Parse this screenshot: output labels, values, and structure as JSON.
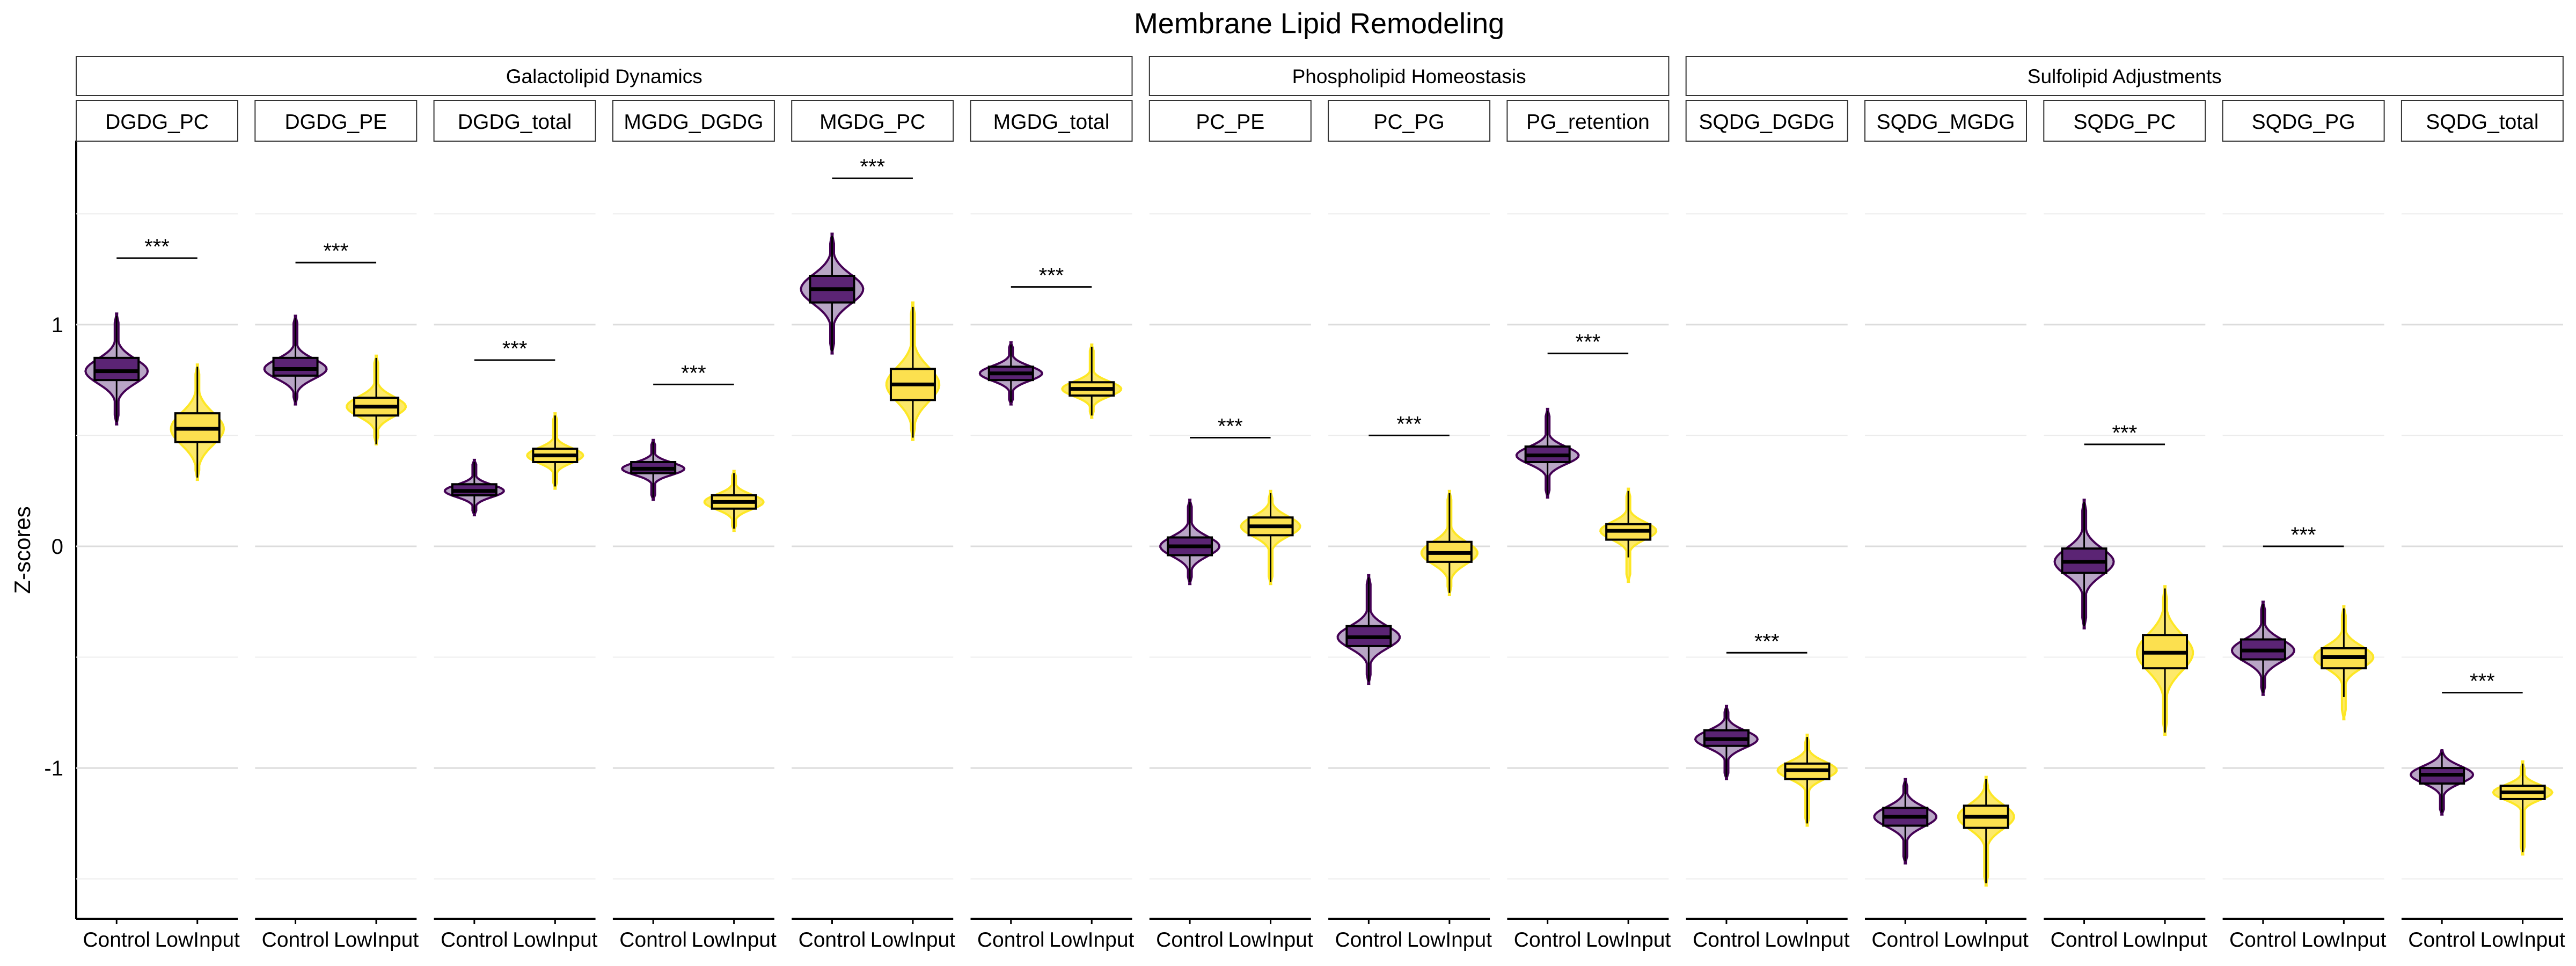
{
  "chart_data": {
    "type": "violin",
    "title": "Membrane Lipid Remodeling",
    "xlabel": "",
    "ylabel": "Z-scores",
    "y_ticks": [
      1,
      0,
      -1
    ],
    "y_tick_labels": [
      "1",
      "0",
      "-1"
    ],
    "ylim": [
      -1.68,
      1.83
    ],
    "grid": true,
    "categories": [
      "Control",
      "LowInput"
    ],
    "colors": {
      "Control": {
        "fill": "#b9a6c6",
        "box": "#5b2474",
        "line": "#440154"
      },
      "LowInput": {
        "fill": "#fde96a",
        "box": "#fce04f",
        "line": "#fde725"
      }
    },
    "significance_label": "***",
    "groups": [
      {
        "name": "Galactolipid Dynamics",
        "panels": [
          0,
          1,
          2,
          3,
          4,
          5
        ]
      },
      {
        "name": "Phospholipid Homeostasis",
        "panels": [
          6,
          7,
          8
        ]
      },
      {
        "name": "Sulfolipid Adjustments",
        "panels": [
          9,
          10,
          11,
          12,
          13
        ]
      }
    ],
    "panels": [
      {
        "name": "DGDG_PC",
        "sig": 1.3,
        "series": [
          {
            "name": "Control",
            "min": 0.56,
            "q1": 0.75,
            "median": 0.79,
            "q3": 0.85,
            "max": 1.04,
            "vmin": 0.55,
            "vmax": 1.05,
            "width": 1.0
          },
          {
            "name": "LowInput",
            "min": 0.31,
            "q1": 0.47,
            "median": 0.53,
            "q3": 0.6,
            "max": 0.81,
            "vmin": 0.3,
            "vmax": 0.82,
            "width": 0.85
          }
        ]
      },
      {
        "name": "DGDG_PE",
        "sig": 1.28,
        "series": [
          {
            "name": "Control",
            "min": 0.65,
            "q1": 0.77,
            "median": 0.8,
            "q3": 0.85,
            "max": 1.03,
            "vmin": 0.64,
            "vmax": 1.04,
            "width": 1.0
          },
          {
            "name": "LowInput",
            "min": 0.46,
            "q1": 0.59,
            "median": 0.63,
            "q3": 0.67,
            "max": 0.85,
            "vmin": 0.46,
            "vmax": 0.86,
            "width": 0.95
          }
        ]
      },
      {
        "name": "DGDG_total",
        "sig": 0.84,
        "series": [
          {
            "name": "Control",
            "min": 0.15,
            "q1": 0.23,
            "median": 0.25,
            "q3": 0.28,
            "max": 0.38,
            "vmin": 0.14,
            "vmax": 0.39,
            "width": 0.95
          },
          {
            "name": "LowInput",
            "min": 0.27,
            "q1": 0.38,
            "median": 0.41,
            "q3": 0.44,
            "max": 0.59,
            "vmin": 0.26,
            "vmax": 0.6,
            "width": 0.9
          }
        ]
      },
      {
        "name": "MGDG_DGDG",
        "sig": 0.73,
        "series": [
          {
            "name": "Control",
            "min": 0.22,
            "q1": 0.33,
            "median": 0.35,
            "q3": 0.38,
            "max": 0.47,
            "vmin": 0.21,
            "vmax": 0.48,
            "width": 1.0
          },
          {
            "name": "LowInput",
            "min": 0.08,
            "q1": 0.17,
            "median": 0.2,
            "q3": 0.23,
            "max": 0.33,
            "vmin": 0.07,
            "vmax": 0.34,
            "width": 0.95
          }
        ]
      },
      {
        "name": "MGDG_PC",
        "sig": 1.66,
        "series": [
          {
            "name": "Control",
            "min": 0.88,
            "q1": 1.1,
            "median": 1.16,
            "q3": 1.22,
            "max": 1.4,
            "vmin": 0.87,
            "vmax": 1.41,
            "width": 1.0
          },
          {
            "name": "LowInput",
            "min": 0.49,
            "q1": 0.66,
            "median": 0.73,
            "q3": 0.8,
            "max": 1.08,
            "vmin": 0.48,
            "vmax": 1.1,
            "width": 0.85
          }
        ]
      },
      {
        "name": "MGDG_total",
        "sig": 1.17,
        "series": [
          {
            "name": "Control",
            "min": 0.65,
            "q1": 0.75,
            "median": 0.78,
            "q3": 0.81,
            "max": 0.91,
            "vmin": 0.64,
            "vmax": 0.92,
            "width": 1.0
          },
          {
            "name": "LowInput",
            "min": 0.59,
            "q1": 0.68,
            "median": 0.71,
            "q3": 0.74,
            "max": 0.9,
            "vmin": 0.58,
            "vmax": 0.91,
            "width": 0.95
          }
        ]
      },
      {
        "name": "PC_PE",
        "sig": 0.49,
        "series": [
          {
            "name": "Control",
            "min": -0.16,
            "q1": -0.04,
            "median": 0.0,
            "q3": 0.04,
            "max": 0.2,
            "vmin": -0.17,
            "vmax": 0.21,
            "width": 0.95
          },
          {
            "name": "LowInput",
            "min": -0.16,
            "q1": 0.05,
            "median": 0.09,
            "q3": 0.13,
            "max": 0.24,
            "vmin": -0.17,
            "vmax": 0.25,
            "width": 0.95
          }
        ]
      },
      {
        "name": "PC_PG",
        "sig": 0.5,
        "series": [
          {
            "name": "Control",
            "min": -0.61,
            "q1": -0.45,
            "median": -0.41,
            "q3": -0.36,
            "max": -0.14,
            "vmin": -0.62,
            "vmax": -0.13,
            "width": 1.0
          },
          {
            "name": "LowInput",
            "min": -0.21,
            "q1": -0.07,
            "median": -0.03,
            "q3": 0.02,
            "max": 0.24,
            "vmin": -0.22,
            "vmax": 0.25,
            "width": 0.9
          }
        ]
      },
      {
        "name": "PG_retention",
        "sig": 0.87,
        "series": [
          {
            "name": "Control",
            "min": 0.23,
            "q1": 0.38,
            "median": 0.41,
            "q3": 0.45,
            "max": 0.61,
            "vmin": 0.22,
            "vmax": 0.62,
            "width": 1.0
          },
          {
            "name": "LowInput",
            "min": -0.05,
            "q1": 0.03,
            "median": 0.07,
            "q3": 0.1,
            "max": 0.25,
            "vmin": -0.16,
            "vmax": 0.26,
            "width": 0.9
          }
        ]
      },
      {
        "name": "SQDG_DGDG",
        "sig": -0.48,
        "series": [
          {
            "name": "Control",
            "min": -1.04,
            "q1": -0.9,
            "median": -0.87,
            "q3": -0.83,
            "max": -0.73,
            "vmin": -1.05,
            "vmax": -0.72,
            "width": 1.0
          },
          {
            "name": "LowInput",
            "min": -1.25,
            "q1": -1.05,
            "median": -1.01,
            "q3": -0.98,
            "max": -0.86,
            "vmin": -1.26,
            "vmax": -0.85,
            "width": 0.95
          }
        ]
      },
      {
        "name": "SQDG_MGDG",
        "sig": null,
        "series": [
          {
            "name": "Control",
            "min": -1.42,
            "q1": -1.26,
            "median": -1.22,
            "q3": -1.18,
            "max": -1.06,
            "vmin": -1.43,
            "vmax": -1.05,
            "width": 1.0
          },
          {
            "name": "LowInput",
            "min": -1.52,
            "q1": -1.27,
            "median": -1.22,
            "q3": -1.17,
            "max": -1.05,
            "vmin": -1.53,
            "vmax": -1.04,
            "width": 0.9
          }
        ]
      },
      {
        "name": "SQDG_PC",
        "sig": 0.46,
        "series": [
          {
            "name": "Control",
            "min": -0.36,
            "q1": -0.12,
            "median": -0.07,
            "q3": -0.01,
            "max": 0.2,
            "vmin": -0.37,
            "vmax": 0.21,
            "width": 0.95
          },
          {
            "name": "LowInput",
            "min": -0.84,
            "q1": -0.55,
            "median": -0.48,
            "q3": -0.4,
            "max": -0.19,
            "vmin": -0.85,
            "vmax": -0.18,
            "width": 0.9
          }
        ]
      },
      {
        "name": "SQDG_PG",
        "sig": 0.0,
        "series": [
          {
            "name": "Control",
            "min": -0.66,
            "q1": -0.51,
            "median": -0.47,
            "q3": -0.42,
            "max": -0.26,
            "vmin": -0.67,
            "vmax": -0.25,
            "width": 1.0
          },
          {
            "name": "LowInput",
            "min": -0.68,
            "q1": -0.55,
            "median": -0.5,
            "q3": -0.46,
            "max": -0.28,
            "vmin": -0.78,
            "vmax": -0.27,
            "width": 0.95
          }
        ]
      },
      {
        "name": "SQDG_total",
        "sig": -0.66,
        "series": [
          {
            "name": "Control",
            "min": -1.2,
            "q1": -1.07,
            "median": -1.03,
            "q3": -1.0,
            "max": -0.93,
            "vmin": -1.21,
            "vmax": -0.92,
            "width": 1.0
          },
          {
            "name": "LowInput",
            "min": -1.38,
            "q1": -1.14,
            "median": -1.11,
            "q3": -1.08,
            "max": -0.98,
            "vmin": -1.39,
            "vmax": -0.97,
            "width": 0.95
          }
        ]
      }
    ]
  }
}
